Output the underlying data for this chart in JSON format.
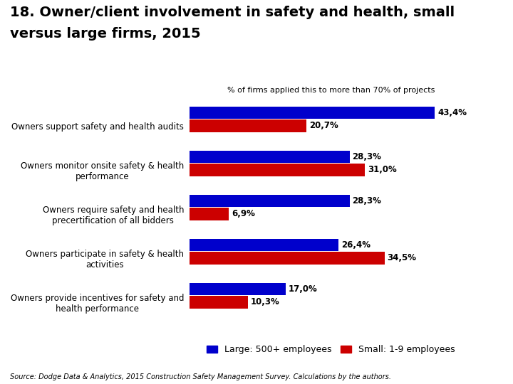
{
  "title_line1": "18. Owner/client involvement in safety and health, small",
  "title_line2": "versus large firms, 2015",
  "subtitle": "% of firms applied this to more than 70% of projects",
  "categories": [
    "Owners support safety and health audits",
    "Owners monitor onsite safety & health\nperformance",
    "Owners require safety and health\nprecertification of all bidders",
    "Owners participate in safety & health\nactivities",
    "Owners provide incentives for safety and\nhealth performance"
  ],
  "large_values": [
    43.4,
    28.3,
    28.3,
    26.4,
    17.0
  ],
  "small_values": [
    20.7,
    31.0,
    6.9,
    34.5,
    10.3
  ],
  "large_labels": [
    "43,4%",
    "28,3%",
    "28,3%",
    "26,4%",
    "17,0%"
  ],
  "small_labels": [
    "20,7%",
    "31,0%",
    "6,9%",
    "34,5%",
    "10,3%"
  ],
  "large_color": "#0000CC",
  "small_color": "#CC0000",
  "legend_large": "Large: 500+ employees",
  "legend_small": "Small: 1-9 employees",
  "source_text": "Source: Dodge Data & Analytics, 2015 Construction Safety Management Survey. Calculations by the authors.",
  "background_color": "#FFFFFF",
  "bar_height": 0.28,
  "xlim": [
    0,
    50
  ],
  "label_fontsize": 8.5,
  "cat_fontsize": 8.5,
  "title_fontsize": 14,
  "subtitle_fontsize": 8
}
